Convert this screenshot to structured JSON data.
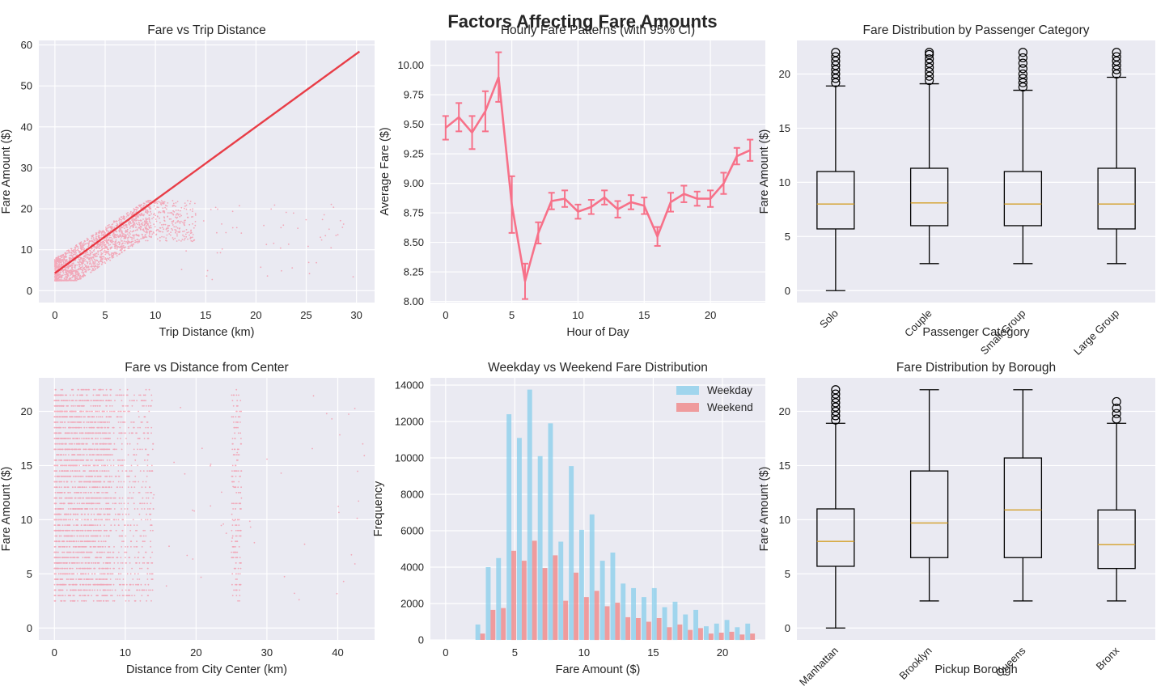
{
  "suptitle": "Factors Affecting Fare Amounts",
  "colors": {
    "pink": "#f77189",
    "red": "#e8202a",
    "blue": "#87ceeb",
    "salmon": "#f08080",
    "median": "#d4a02a",
    "panel": "#eaeaf2"
  },
  "chart_data": [
    {
      "id": "fare-vs-distance",
      "type": "scatter",
      "title": "Fare vs Trip Distance",
      "xlabel": "Trip Distance (km)",
      "ylabel": "Fare Amount ($)",
      "xlim": [
        -1.6,
        31.8
      ],
      "ylim": [
        -2.9,
        61.1
      ],
      "xticks": [
        0,
        5,
        10,
        15,
        20,
        25,
        30
      ],
      "yticks": [
        0,
        10,
        20,
        30,
        40,
        50,
        60
      ],
      "trend_line": {
        "x": [
          0,
          30.3
        ],
        "y": [
          4.3,
          58.4
        ]
      },
      "points_note": "dense cloud of points, fare 2.5–22 $, distance 0–30 km"
    },
    {
      "id": "hourly-fare",
      "type": "line",
      "title": "Hourly Fare Patterns (with 95% CI)",
      "xlabel": "Hour of Day",
      "ylabel": "Average Fare ($)",
      "xlim": [
        -1.15,
        24.15
      ],
      "ylim": [
        7.99,
        10.21
      ],
      "xticks": [
        0,
        5,
        10,
        15,
        20
      ],
      "yticks": [
        8.0,
        8.25,
        8.5,
        8.75,
        9.0,
        9.25,
        9.5,
        9.75,
        10.0
      ],
      "x": [
        0,
        1,
        2,
        3,
        4,
        5,
        6,
        7,
        8,
        9,
        10,
        11,
        12,
        13,
        14,
        15,
        16,
        17,
        18,
        19,
        20,
        21,
        22,
        23
      ],
      "y": [
        9.47,
        9.56,
        9.43,
        9.61,
        9.9,
        8.82,
        8.17,
        8.58,
        8.85,
        8.87,
        8.76,
        8.8,
        8.88,
        8.78,
        8.84,
        8.81,
        8.55,
        8.84,
        8.91,
        8.87,
        8.87,
        9.0,
        9.23,
        9.28
      ],
      "ci": [
        0.1,
        0.12,
        0.14,
        0.17,
        0.21,
        0.24,
        0.15,
        0.09,
        0.07,
        0.07,
        0.06,
        0.06,
        0.06,
        0.07,
        0.06,
        0.07,
        0.08,
        0.08,
        0.07,
        0.06,
        0.07,
        0.09,
        0.07,
        0.09
      ]
    },
    {
      "id": "passenger-box",
      "type": "box",
      "title": "Fare Distribution by Passenger Category",
      "xlabel": "Passenger Category",
      "ylabel": "Fare Amount ($)",
      "ylim": [
        -1.1,
        23.1
      ],
      "yticks": [
        0,
        5,
        10,
        15,
        20
      ],
      "categories": [
        "Solo",
        "Couple",
        "Small Group",
        "Large Group"
      ],
      "boxes": [
        {
          "lo": 0,
          "q1": 5.7,
          "med": 8.0,
          "q3": 11.0,
          "hi": 18.9,
          "outliers": [
            19.2,
            19.6,
            20.0,
            20.4,
            20.8,
            21.2,
            21.6,
            22.0
          ]
        },
        {
          "lo": 2.5,
          "q1": 6.0,
          "med": 8.1,
          "q3": 11.3,
          "hi": 19.1,
          "outliers": [
            19.4,
            19.8,
            20.2,
            20.6,
            21.0,
            21.4,
            21.8,
            22.0
          ]
        },
        {
          "lo": 2.5,
          "q1": 6.0,
          "med": 8.0,
          "q3": 11.0,
          "hi": 18.5,
          "outliers": [
            18.8,
            19.2,
            19.6,
            20.0,
            20.5,
            21.0,
            21.5,
            22.0
          ]
        },
        {
          "lo": 2.5,
          "q1": 5.7,
          "med": 8.0,
          "q3": 11.3,
          "hi": 19.7,
          "outliers": [
            20.0,
            20.4,
            20.8,
            21.2,
            21.6,
            22.0
          ]
        }
      ]
    },
    {
      "id": "fare-vs-center",
      "type": "scatter",
      "title": "Fare vs Distance from Center",
      "xlabel": "Distance from City Center (km)",
      "ylabel": "Fare Amount ($)",
      "xlim": [
        -2.2,
        45.2
      ],
      "ylim": [
        -1.1,
        23.1
      ],
      "xticks": [
        0,
        10,
        20,
        30,
        40
      ],
      "yticks": [
        0,
        5,
        10,
        15,
        20
      ],
      "points_note": "dense cloud 0–14 km and 25–26 km band, fare 2.5–22 $"
    },
    {
      "id": "weekday-weekend-hist",
      "type": "bar",
      "title": "Weekday vs Weekend Fare Distribution",
      "xlabel": "Fare Amount ($)",
      "ylabel": "Frequency",
      "xlim": [
        -1.1,
        23.1
      ],
      "ylim": [
        0,
        14400
      ],
      "xticks": [
        0,
        5,
        10,
        15,
        20
      ],
      "yticks": [
        0,
        2000,
        4000,
        6000,
        8000,
        10000,
        12000,
        14000
      ],
      "bin_centers": [
        2.5,
        3.25,
        4.0,
        4.75,
        5.5,
        6.25,
        7.0,
        7.75,
        8.5,
        9.25,
        10.0,
        10.75,
        11.5,
        12.25,
        13.0,
        13.75,
        14.5,
        15.25,
        16.0,
        16.75,
        17.5,
        18.25,
        19.0,
        19.75,
        20.5,
        21.25,
        22.0
      ],
      "series": [
        {
          "name": "Weekday",
          "values": [
            850,
            4000,
            4500,
            12400,
            11100,
            13750,
            10100,
            11900,
            5400,
            9550,
            6050,
            6900,
            4350,
            4800,
            3100,
            2850,
            2350,
            2850,
            1800,
            2100,
            1400,
            1650,
            750,
            900,
            1100,
            700,
            900
          ]
        },
        {
          "name": "Weekend",
          "values": [
            350,
            1650,
            1750,
            4900,
            4350,
            5450,
            3950,
            4650,
            2150,
            3700,
            2350,
            2700,
            1850,
            2050,
            1250,
            1200,
            1000,
            1200,
            700,
            850,
            550,
            650,
            350,
            400,
            450,
            300,
            350
          ]
        }
      ]
    },
    {
      "id": "borough-box",
      "type": "box",
      "title": "Fare Distribution by Borough",
      "xlabel": "Pickup Borough",
      "ylabel": "Fare Amount ($)",
      "ylim": [
        -1.1,
        23.1
      ],
      "yticks": [
        0,
        5,
        10,
        15,
        20
      ],
      "categories": [
        "Manhattan",
        "Brooklyn",
        "Queens",
        "Bronx"
      ],
      "boxes": [
        {
          "lo": 0,
          "q1": 5.7,
          "med": 8.0,
          "q3": 11.0,
          "hi": 18.9,
          "outliers": [
            19.2,
            19.6,
            20.0,
            20.4,
            20.8,
            21.2,
            21.6,
            22.0
          ]
        },
        {
          "lo": 2.5,
          "q1": 6.5,
          "med": 9.7,
          "q3": 14.5,
          "hi": 22.0,
          "outliers": []
        },
        {
          "lo": 2.5,
          "q1": 6.5,
          "med": 10.9,
          "q3": 15.7,
          "hi": 22.0,
          "outliers": []
        },
        {
          "lo": 2.5,
          "q1": 5.5,
          "med": 7.7,
          "q3": 10.9,
          "hi": 18.9,
          "outliers": [
            19.3,
            19.8,
            20.3,
            20.9
          ]
        }
      ]
    }
  ]
}
